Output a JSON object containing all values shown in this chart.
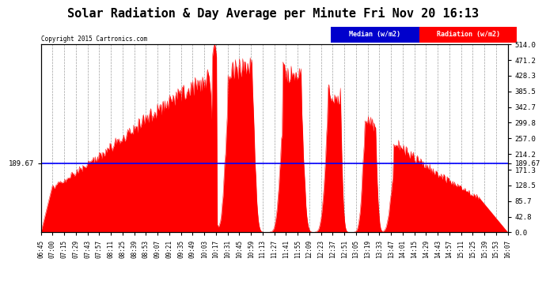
{
  "title": "Solar Radiation & Day Average per Minute Fri Nov 20 16:13",
  "copyright": "Copyright 2015 Cartronics.com",
  "median_value": 189.67,
  "y_right_ticks": [
    0.0,
    42.8,
    85.7,
    128.5,
    171.3,
    214.2,
    257.0,
    299.8,
    342.7,
    385.5,
    428.3,
    471.2,
    514.0
  ],
  "y_right_labels": [
    "0.0",
    "42.8",
    "85.7",
    "128.5",
    "171.3",
    "214.2",
    "257.0",
    "299.8",
    "342.7",
    "385.5",
    "428.3",
    "471.2",
    "514.0"
  ],
  "fill_color": "#FF0000",
  "median_color": "#0000FF",
  "background_color": "#FFFFFF",
  "grid_color": "#888888",
  "legend_median_color": "#0000CC",
  "legend_radiation_color": "#FF0000",
  "x_tick_labels": [
    "06:45",
    "07:00",
    "07:15",
    "07:29",
    "07:43",
    "07:57",
    "08:11",
    "08:25",
    "08:39",
    "08:53",
    "09:07",
    "09:21",
    "09:35",
    "09:49",
    "10:03",
    "10:17",
    "10:31",
    "10:45",
    "10:59",
    "11:13",
    "11:27",
    "11:41",
    "11:55",
    "12:09",
    "12:23",
    "12:37",
    "12:51",
    "13:05",
    "13:19",
    "13:33",
    "13:47",
    "14:01",
    "14:15",
    "14:29",
    "14:43",
    "14:57",
    "15:11",
    "15:25",
    "15:39",
    "15:53",
    "16:07"
  ]
}
